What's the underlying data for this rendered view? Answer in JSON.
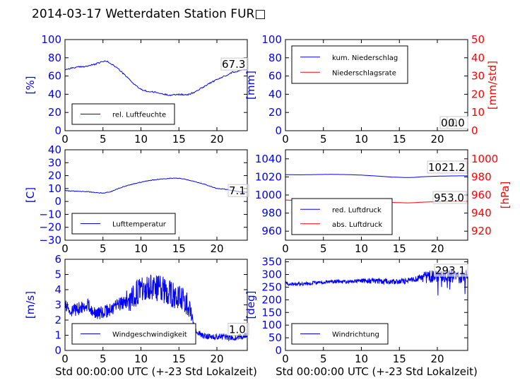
{
  "title": "2014-03-17 Wetterdaten Station FUR□",
  "colors": {
    "primary": "#0000ff",
    "secondary": "#ff0000",
    "axis": "#000000",
    "legend_border": "#000000",
    "background": "#ffffff"
  },
  "chart_data": [
    {
      "id": "humidity",
      "type": "line",
      "xlim": [
        0,
        24
      ],
      "ylim": [
        0,
        100
      ],
      "yticks": [
        "0",
        "20",
        "40",
        "60",
        "80",
        "100"
      ],
      "xticks": [
        "0",
        "5",
        "10",
        "15",
        "20"
      ],
      "ylabel": "[%]",
      "xlabel": "",
      "legend_position": "lower-left",
      "annotation": "67.3",
      "series": [
        {
          "name": "rel. Luftfeuchte",
          "color": "#0000ff",
          "axis": "left",
          "x": [
            0,
            1,
            2,
            3,
            4,
            5,
            5.5,
            6,
            7,
            8,
            9,
            10,
            11,
            12,
            13,
            14,
            15,
            16,
            17,
            18,
            19,
            20,
            21,
            22,
            23,
            24
          ],
          "y": [
            67,
            69,
            70,
            71,
            73,
            76,
            76,
            74,
            68,
            60,
            52,
            45,
            43,
            42,
            40,
            39,
            40,
            39,
            42,
            47,
            52,
            56,
            60,
            64,
            66,
            67.3
          ]
        }
      ]
    },
    {
      "id": "precip",
      "type": "line",
      "xlim": [
        0,
        24
      ],
      "ylim": [
        0,
        100
      ],
      "ylim_right": [
        0,
        50
      ],
      "yticks": [
        "0",
        "20",
        "40",
        "60",
        "80",
        "100"
      ],
      "yticks_right": [
        "0",
        "10",
        "20",
        "30",
        "40",
        "50"
      ],
      "xticks": [
        "0",
        "5",
        "10",
        "15",
        "20"
      ],
      "ylabel": "[mm]",
      "ylabel_right": "[mm/std]",
      "xlabel": "",
      "legend_position": "upper-left",
      "annotation": "0.0",
      "annotation2": "0.0",
      "series": [
        {
          "name": "kum. Niederschlag",
          "color": "#0000ff",
          "axis": "left",
          "x": [
            0,
            24
          ],
          "y": [
            0,
            0
          ]
        },
        {
          "name": "Niederschlagsrate",
          "color": "#ff0000",
          "axis": "right",
          "x": [
            0,
            24
          ],
          "y": [
            0,
            0
          ]
        }
      ]
    },
    {
      "id": "temperature",
      "type": "line",
      "xlim": [
        0,
        24
      ],
      "ylim": [
        -30,
        40
      ],
      "yticks": [
        "−30",
        "−20",
        "−10",
        "0",
        "10",
        "20",
        "30",
        "40"
      ],
      "xticks": [
        "0",
        "5",
        "10",
        "15",
        "20"
      ],
      "ylabel": "[C]",
      "xlabel": "",
      "legend_position": "lower-left",
      "annotation": "7.1",
      "series": [
        {
          "name": "Lufttemperatur",
          "color": "#0000ff",
          "axis": "left",
          "x": [
            0,
            1,
            2,
            3,
            4,
            5,
            6,
            7,
            8,
            9,
            10,
            11,
            12,
            13,
            14,
            15,
            16,
            17,
            18,
            19,
            20,
            21,
            22,
            23,
            24
          ],
          "y": [
            8.5,
            8,
            7.8,
            7.5,
            7,
            6.5,
            7.5,
            10,
            12,
            13.5,
            15,
            16,
            17,
            17.5,
            18,
            18,
            17,
            15.5,
            14,
            12,
            10,
            9.5,
            8.5,
            7.5,
            7.1
          ]
        }
      ]
    },
    {
      "id": "pressure",
      "type": "line",
      "xlim": [
        0,
        24
      ],
      "ylim": [
        950,
        1050
      ],
      "ylim_right": [
        910,
        1010
      ],
      "yticks": [
        "960",
        "980",
        "1000",
        "1020",
        "1040"
      ],
      "yticks_right": [
        "920",
        "940",
        "960",
        "980",
        "1000"
      ],
      "xticks": [
        "0",
        "5",
        "10",
        "15",
        "20"
      ],
      "ylabel": "",
      "ylabel_right": "[hPa]",
      "xlabel": "",
      "legend_position": "lower-left",
      "annotation": "1021.2",
      "annotation2": "953.0",
      "series": [
        {
          "name": "red. Luftdruck",
          "color": "#0000ff",
          "axis": "left",
          "x": [
            0,
            2,
            4,
            6,
            8,
            10,
            12,
            14,
            16,
            17,
            18,
            20,
            22,
            24
          ],
          "y": [
            1022.5,
            1022.3,
            1022.6,
            1022.8,
            1022.6,
            1022,
            1021,
            1019.8,
            1019.3,
            1019.5,
            1020.2,
            1020.8,
            1021.1,
            1021.2
          ]
        },
        {
          "name": "abs. Luftdruck",
          "color": "#ff0000",
          "axis": "right",
          "x": [
            0,
            2,
            4,
            6,
            8,
            10,
            12,
            14,
            16,
            17,
            18,
            20,
            22,
            24
          ],
          "y": [
            954.3,
            954.1,
            954.4,
            954.6,
            954.4,
            953.8,
            953,
            951.8,
            951.3,
            951.5,
            952.1,
            952.6,
            952.9,
            953.0
          ]
        }
      ]
    },
    {
      "id": "wind_speed",
      "type": "line",
      "xlim": [
        0,
        24
      ],
      "ylim": [
        0,
        6
      ],
      "yticks": [
        "0",
        "1",
        "2",
        "3",
        "4",
        "5",
        "6"
      ],
      "xticks": [
        "0",
        "5",
        "10",
        "15",
        "20"
      ],
      "ylabel": "[m/s]",
      "xlabel": "Std 00:00:00 UTC (+-23 Std Lokalzeit)",
      "legend_position": "lower-left",
      "annotation": "1.0",
      "noise": 0.55,
      "series": [
        {
          "name": "Windgeschwindigkeit",
          "color": "#0000ff",
          "axis": "left",
          "x": [
            0,
            1,
            2,
            3,
            4,
            5,
            6,
            7,
            8,
            9,
            10,
            11,
            12,
            13,
            14,
            15,
            16,
            16.5,
            17,
            18,
            19,
            20,
            21,
            22,
            23,
            24
          ],
          "y": [
            3.0,
            2.6,
            2.8,
            3.0,
            2.4,
            2.5,
            2.7,
            3.0,
            3.2,
            3.6,
            4.0,
            4.2,
            4.1,
            4.0,
            3.7,
            3.5,
            3.2,
            2.7,
            1.4,
            1.0,
            0.9,
            0.9,
            0.9,
            0.8,
            0.9,
            1.0
          ]
        }
      ]
    },
    {
      "id": "wind_direction",
      "type": "line",
      "xlim": [
        0,
        24
      ],
      "ylim": [
        0,
        360
      ],
      "yticks": [
        "0",
        "50",
        "100",
        "150",
        "200",
        "250",
        "300",
        "350"
      ],
      "xticks": [
        "0",
        "5",
        "10",
        "15",
        "20"
      ],
      "ylabel": "[deg]",
      "xlabel": "Std 00:00:00 UTC (+-23 Std Lokalzeit)",
      "legend_position": "lower-left",
      "annotation": "293.1",
      "noise": 14,
      "series": [
        {
          "name": "Windrichtung",
          "color": "#0000ff",
          "axis": "left",
          "x": [
            0,
            1,
            2,
            3,
            4,
            5,
            6,
            7,
            8,
            9,
            10,
            11,
            12,
            13,
            14,
            15,
            16,
            17,
            18,
            19,
            20,
            21,
            22,
            23,
            24
          ],
          "y": [
            265,
            262,
            262,
            265,
            268,
            270,
            272,
            272,
            270,
            273,
            275,
            275,
            274,
            273,
            272,
            272,
            275,
            280,
            290,
            292,
            295,
            294,
            292,
            290,
            293
          ]
        }
      ]
    }
  ]
}
